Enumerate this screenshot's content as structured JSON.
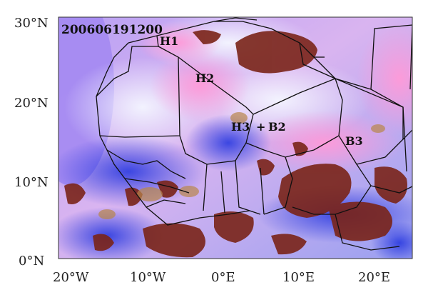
{
  "timestamp": "200606191200",
  "lat_labels": [
    "30°N",
    "20°N",
    "10°N",
    "0°N"
  ],
  "lon_labels": [
    "20°W",
    "10°W",
    "0°E",
    "10°E",
    "20°E"
  ],
  "annotations": {
    "h1": "H1",
    "h2": "H2",
    "h3": "H3",
    "plus": "+",
    "b2": "B2",
    "b3": "B3"
  },
  "colors": {
    "ocean_violet": "#a98cf2",
    "sahara_pink": "#f2a8e6",
    "cloud_white": "#eef0fb",
    "deep_blue": "#2f3bd8",
    "convective_red": "#7a1f1a",
    "border": "#101010"
  }
}
